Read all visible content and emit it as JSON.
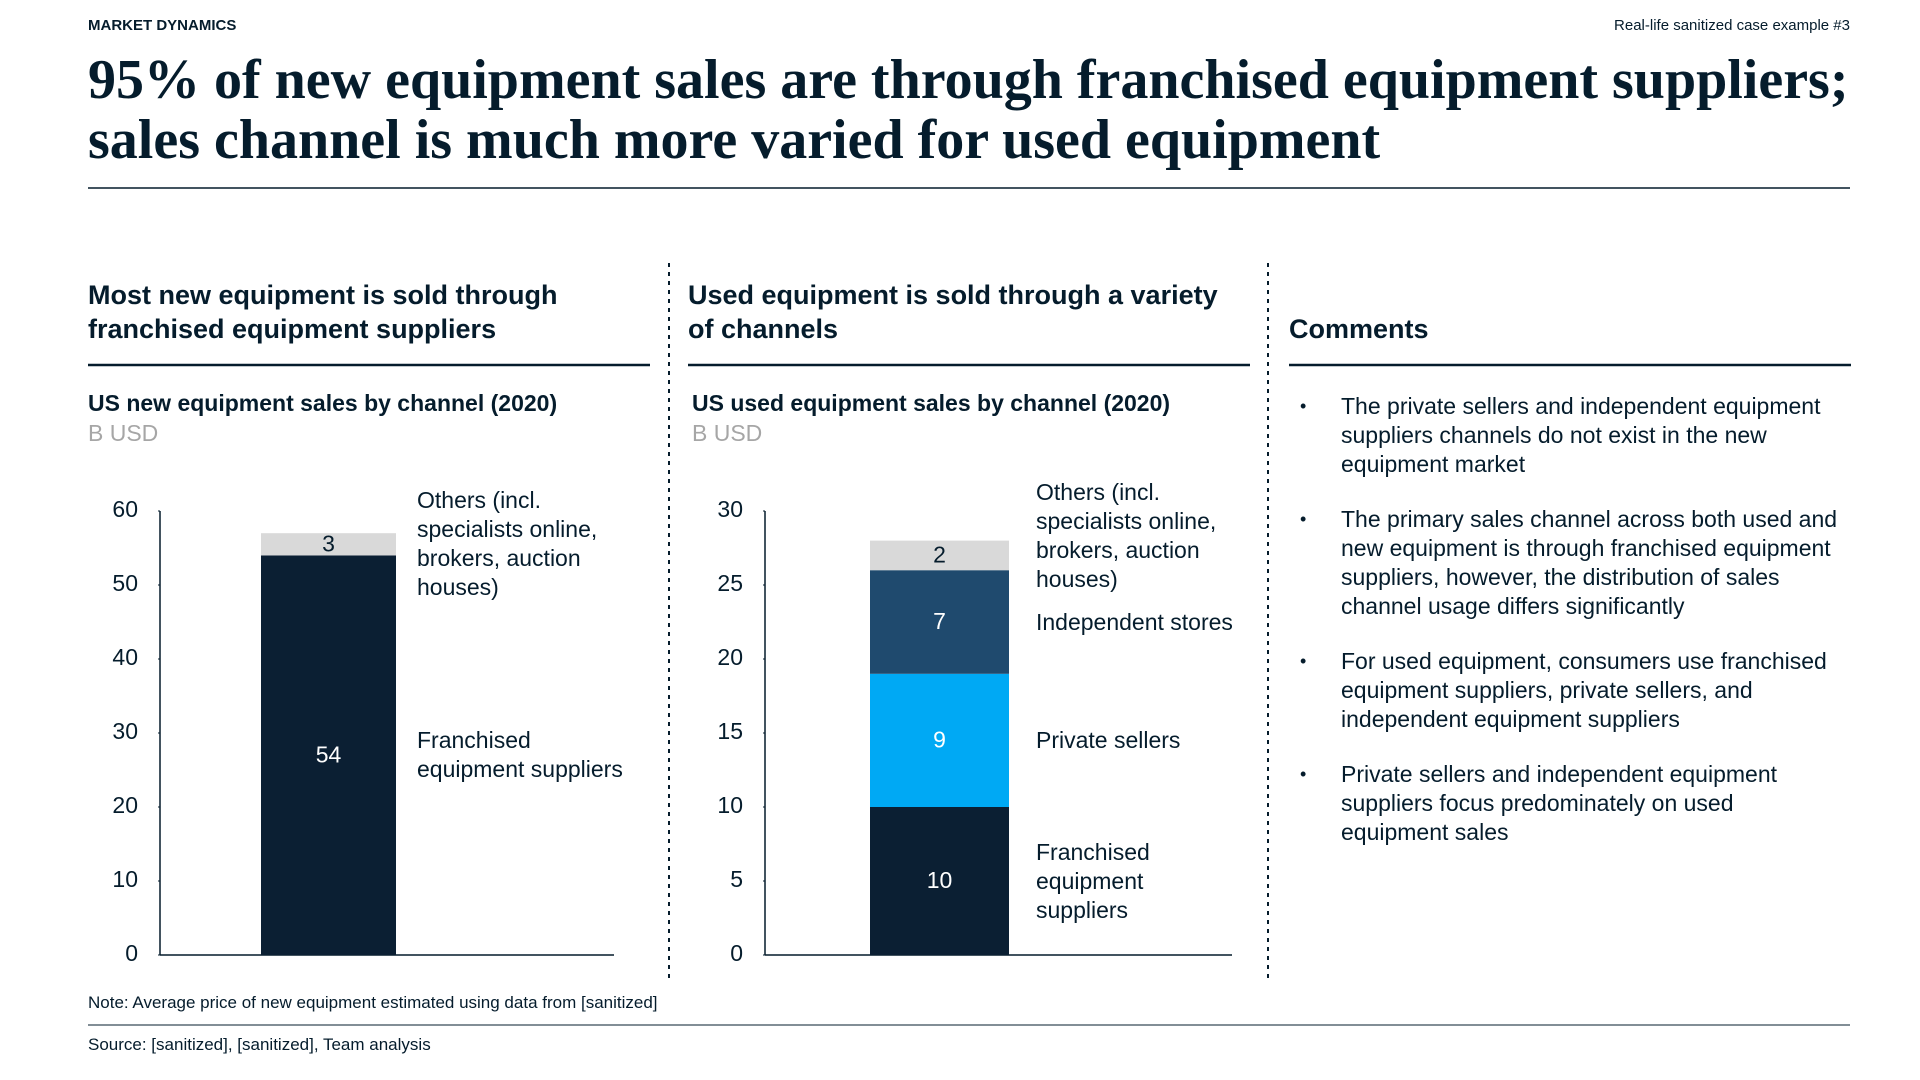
{
  "header": {
    "section": "MARKET DYNAMICS",
    "tag": "Real-life sanitized case example #3",
    "title": "95% of new equipment sales are through franchised equipment suppliers; sales channel is much more varied for used equipment"
  },
  "panels": [
    {
      "heading": "Most new equipment is sold through franchised equipment suppliers"
    },
    {
      "heading": "Used equipment is sold through a variety of channels"
    },
    {
      "heading": "Comments",
      "items": [
        "The private sellers and independent equipment suppliers channels do not exist in the new equipment market",
        "The primary sales channel across both used and new equipment is through franchised equipment suppliers, however, the distribution of sales channel usage differs significantly",
        "For used equipment, consumers use franchised equipment suppliers, private sellers, and independent equipment suppliers",
        "Private sellers and independent equipment suppliers focus predominately on used equipment sales"
      ]
    }
  ],
  "chart_data": [
    {
      "type": "stacked_bar",
      "title": "US new equipment sales by channel (2020)",
      "subtitle": "B USD",
      "categories": [
        null
      ],
      "ylim": [
        0,
        60
      ],
      "yticks": [
        0,
        10,
        20,
        30,
        40,
        50,
        60
      ],
      "series": [
        {
          "name": "Franchised equipment suppliers",
          "color": "#0b1f33",
          "values": [
            54
          ]
        },
        {
          "name": "Others (incl. specialists online, brokers, auction houses)",
          "color": "#d9d9d9",
          "values": [
            3
          ]
        }
      ]
    },
    {
      "type": "stacked_bar",
      "title": "US used equipment sales by channel (2020)",
      "subtitle": "B USD",
      "categories": [
        null
      ],
      "ylim": [
        0,
        30
      ],
      "yticks": [
        0,
        5,
        10,
        15,
        20,
        25,
        30
      ],
      "series": [
        {
          "name": "Franchised equipment suppliers",
          "color": "#0b1f33",
          "values": [
            10
          ]
        },
        {
          "name": "Private sellers",
          "color": "#00a9f4",
          "values": [
            9
          ]
        },
        {
          "name": "Independent stores",
          "color": "#1f4a6e",
          "values": [
            7
          ]
        },
        {
          "name": "Others (incl. specialists online, brokers, auction houses)",
          "color": "#d9d9d9",
          "values": [
            2
          ]
        }
      ]
    }
  ],
  "footer": {
    "note": "Note: Average price of new equipment estimated using data from [sanitized]",
    "source": "Source: [sanitized], [sanitized], Team analysis"
  }
}
